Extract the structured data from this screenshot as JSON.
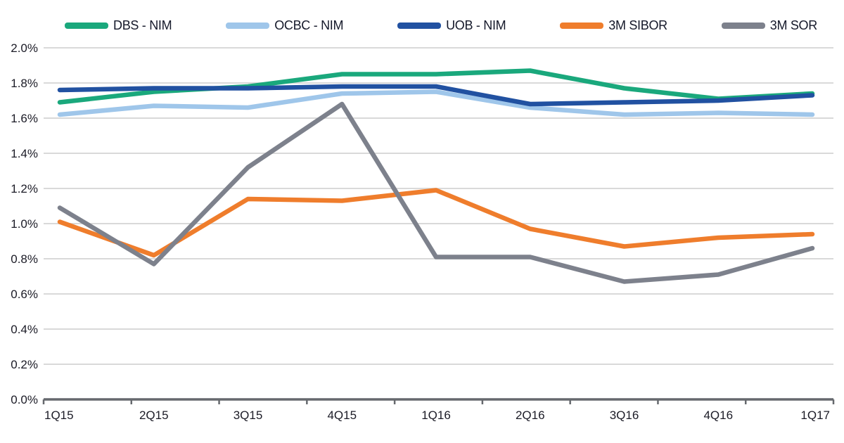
{
  "chart_data": {
    "type": "line",
    "title": "",
    "xlabel": "",
    "ylabel": "",
    "categories": [
      "1Q15",
      "2Q15",
      "3Q15",
      "4Q15",
      "1Q16",
      "2Q16",
      "3Q16",
      "4Q16",
      "1Q17"
    ],
    "series": [
      {
        "name": "DBS - NIM",
        "color": "#1aa87c",
        "values": [
          1.69,
          1.75,
          1.78,
          1.85,
          1.85,
          1.87,
          1.77,
          1.71,
          1.74
        ]
      },
      {
        "name": "OCBC - NIM",
        "color": "#9fc6ea",
        "values": [
          1.62,
          1.67,
          1.66,
          1.74,
          1.75,
          1.66,
          1.62,
          1.63,
          1.62
        ]
      },
      {
        "name": "UOB - NIM",
        "color": "#2151a1",
        "values": [
          1.76,
          1.77,
          1.77,
          1.78,
          1.78,
          1.68,
          1.69,
          1.7,
          1.73
        ]
      },
      {
        "name": "3M SIBOR",
        "color": "#ef7d2c",
        "values": [
          1.01,
          0.82,
          1.14,
          1.13,
          1.19,
          0.97,
          0.87,
          0.92,
          0.94
        ]
      },
      {
        "name": "3M SOR",
        "color": "#7d818c",
        "values": [
          1.09,
          0.77,
          1.32,
          1.68,
          0.81,
          0.81,
          0.67,
          0.71,
          0.86
        ]
      }
    ],
    "y_tick_labels": [
      "0.0%",
      "0.2%",
      "0.4%",
      "0.6%",
      "0.8%",
      "1.0%",
      "1.2%",
      "1.4%",
      "1.6%",
      "1.8%",
      "2.0%"
    ],
    "ylim": [
      0,
      2.0
    ],
    "y_step": 0.2,
    "grid": true,
    "legend_position": "top",
    "grid_color": "#d9d9d9",
    "axis_color": "#66696e",
    "text_color": "#1b1b26",
    "background_color": "#ffffff"
  }
}
